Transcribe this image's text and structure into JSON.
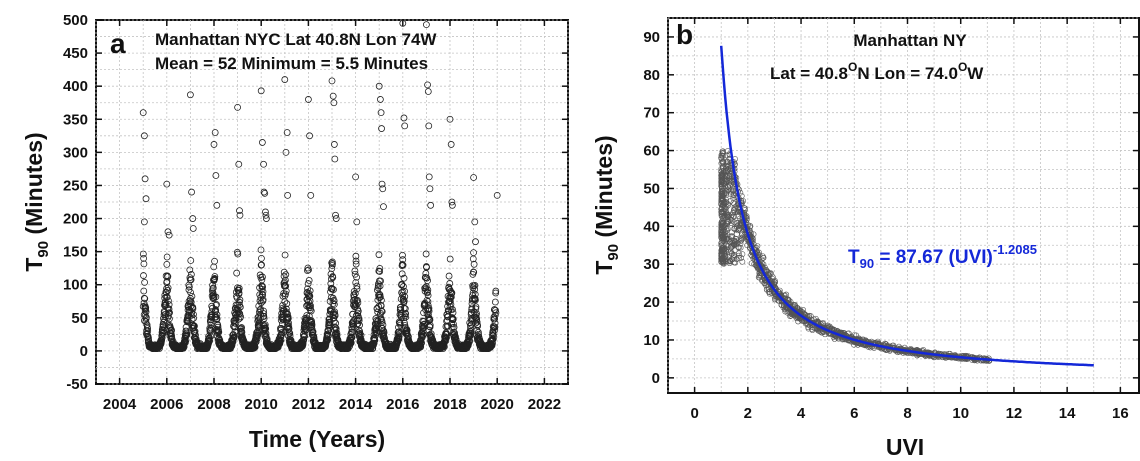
{
  "colors": {
    "fit_line": "#1428d8",
    "equation": "#1428d8",
    "points": "#222222",
    "grid": "#c4c4c4"
  },
  "chart_data": [
    {
      "type": "scatter",
      "panel_label": "a",
      "annotations": [
        "Manhattan NYC Lat 40.8N   Lon 74W",
        "Mean = 52   Minimum = 5.5 Minutes"
      ],
      "xlabel": "Time (Years)",
      "ylabel_main": "T",
      "ylabel_sub": "90",
      "ylabel_rest": " (Minutes)",
      "xlim": [
        2003,
        2023
      ],
      "ylim": [
        -50,
        500
      ],
      "xticks": [
        "2004",
        "2006",
        "2008",
        "2010",
        "2012",
        "2014",
        "2016",
        "2018",
        "2020",
        "2022"
      ],
      "yticks": [
        "-50",
        "0",
        "50",
        "100",
        "150",
        "200",
        "250",
        "300",
        "350",
        "400",
        "450",
        "500"
      ],
      "grid": true,
      "marker": "open-circle",
      "series": [
        {
          "x_range": [
            2005.0,
            2019.95
          ],
          "seasonal_min_minutes": 5.5,
          "seasonal_peak_typical_minutes": 120,
          "outliers": [
            [
              2005.0,
              360
            ],
            [
              2005.05,
              325
            ],
            [
              2005.08,
              260
            ],
            [
              2005.12,
              230
            ],
            [
              2005.05,
              195
            ],
            [
              2006.0,
              252
            ],
            [
              2006.05,
              180
            ],
            [
              2006.1,
              175
            ],
            [
              2007.0,
              387
            ],
            [
              2007.05,
              240
            ],
            [
              2007.1,
              200
            ],
            [
              2007.12,
              185
            ],
            [
              2008.05,
              330
            ],
            [
              2008.0,
              312
            ],
            [
              2008.08,
              265
            ],
            [
              2008.12,
              220
            ],
            [
              2009.0,
              368
            ],
            [
              2009.05,
              282
            ],
            [
              2009.08,
              212
            ],
            [
              2009.1,
              205
            ],
            [
              2010.0,
              393
            ],
            [
              2010.05,
              315
            ],
            [
              2010.1,
              282
            ],
            [
              2010.12,
              240
            ],
            [
              2010.15,
              238
            ],
            [
              2010.18,
              210
            ],
            [
              2010.2,
              205
            ],
            [
              2010.22,
              200
            ],
            [
              2011.0,
              410
            ],
            [
              2011.05,
              300
            ],
            [
              2011.1,
              330
            ],
            [
              2011.12,
              235
            ],
            [
              2012.0,
              380
            ],
            [
              2012.05,
              325
            ],
            [
              2012.1,
              235
            ],
            [
              2013.0,
              408
            ],
            [
              2013.05,
              385
            ],
            [
              2013.08,
              375
            ],
            [
              2013.1,
              312
            ],
            [
              2013.12,
              290
            ],
            [
              2013.15,
              205
            ],
            [
              2013.18,
              200
            ],
            [
              2014.0,
              263
            ],
            [
              2014.05,
              195
            ],
            [
              2015.0,
              400
            ],
            [
              2015.05,
              380
            ],
            [
              2015.08,
              360
            ],
            [
              2015.1,
              336
            ],
            [
              2015.12,
              252
            ],
            [
              2015.15,
              245
            ],
            [
              2015.18,
              218
            ],
            [
              2016.05,
              352
            ],
            [
              2016.08,
              340
            ],
            [
              2016.0,
              495
            ],
            [
              2017.0,
              493
            ],
            [
              2017.05,
              402
            ],
            [
              2017.08,
              392
            ],
            [
              2017.1,
              340
            ],
            [
              2017.12,
              263
            ],
            [
              2017.15,
              245
            ],
            [
              2017.18,
              220
            ],
            [
              2018.0,
              350
            ],
            [
              2018.05,
              312
            ],
            [
              2018.08,
              225
            ],
            [
              2018.1,
              220
            ],
            [
              2019.0,
              262
            ],
            [
              2019.05,
              195
            ],
            [
              2019.08,
              165
            ],
            [
              2020.0,
              235
            ]
          ]
        }
      ]
    },
    {
      "type": "scatter",
      "panel_label": "b",
      "annotations": [
        "Manhattan NY",
        "Lat = 40.8",
        "O",
        "N    Lon = 74.0",
        "O",
        "W"
      ],
      "xlabel": "UVI",
      "ylabel_main": "T",
      "ylabel_sub": "90",
      "ylabel_rest": " (Minutes)",
      "xlim": [
        -1,
        16.7
      ],
      "ylim": [
        -4,
        95
      ],
      "xticks": [
        "0",
        "2",
        "4",
        "6",
        "8",
        "10",
        "12",
        "14",
        "16"
      ],
      "yticks": [
        "0",
        "10",
        "20",
        "30",
        "40",
        "50",
        "60",
        "70",
        "80",
        "90"
      ],
      "grid": true,
      "equation": {
        "lhs": "T",
        "lhs_sub": "90",
        "rhs": " = 87.67 (UVI)",
        "exponent": "-1.2085"
      },
      "fit": {
        "coefficient": 87.67,
        "exponent": -1.2085,
        "x_range": [
          1.0,
          15.0
        ]
      },
      "series": [
        {
          "name": "observations",
          "x_range": [
            1.0,
            15.0
          ],
          "y_at_min_x_range": [
            30,
            60
          ]
        }
      ]
    }
  ]
}
